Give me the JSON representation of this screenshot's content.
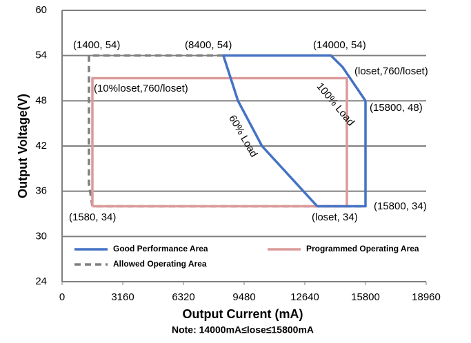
{
  "chart_data": {
    "type": "line",
    "x_label": "Output Current (mA)",
    "y_label": "Output Voltage(V)",
    "note": "Note:  14000mA≤lose≤15800mA",
    "xlim": [
      0,
      18960
    ],
    "xticks": [
      0,
      3160,
      6320,
      9480,
      12640,
      15800,
      18960
    ],
    "ylim": [
      24,
      60
    ],
    "yticks": [
      24,
      30,
      36,
      42,
      48,
      54,
      60
    ],
    "grid": true,
    "legend": "lower left",
    "series": [
      {
        "name": "Good Performance Area",
        "color": "#4472c4",
        "style": "solid",
        "x": [
          13290,
          12570,
          10410,
          9160,
          8400,
          14000,
          14600,
          15800,
          15800,
          13290
        ],
        "values": [
          34,
          36,
          42,
          48,
          54,
          54,
          52.5,
          48,
          34,
          34
        ]
      },
      {
        "name": "Programmed Operating Area",
        "color": "#dc9a9a",
        "style": "solid",
        "x": [
          1580,
          1580,
          14830,
          14830,
          1580
        ],
        "values": [
          34,
          51,
          51,
          34,
          34
        ]
      },
      {
        "name": "Allowed Operating Area",
        "color": "#7f7f7f",
        "style": "dashed",
        "x": [
          8400,
          1400,
          1400,
          1580,
          15800
        ],
        "values": [
          54,
          54,
          37,
          34,
          34
        ]
      }
    ],
    "annotations": [
      "(1400, 54)",
      "(8400, 54)",
      "(14000, 54)",
      "(loset,760/loset)",
      "(10%loset,760/loset)",
      "(15800, 48)",
      "(1580, 34)",
      "(loset, 34)",
      "(15800, 34)",
      "60% Load",
      "100% Load"
    ]
  }
}
